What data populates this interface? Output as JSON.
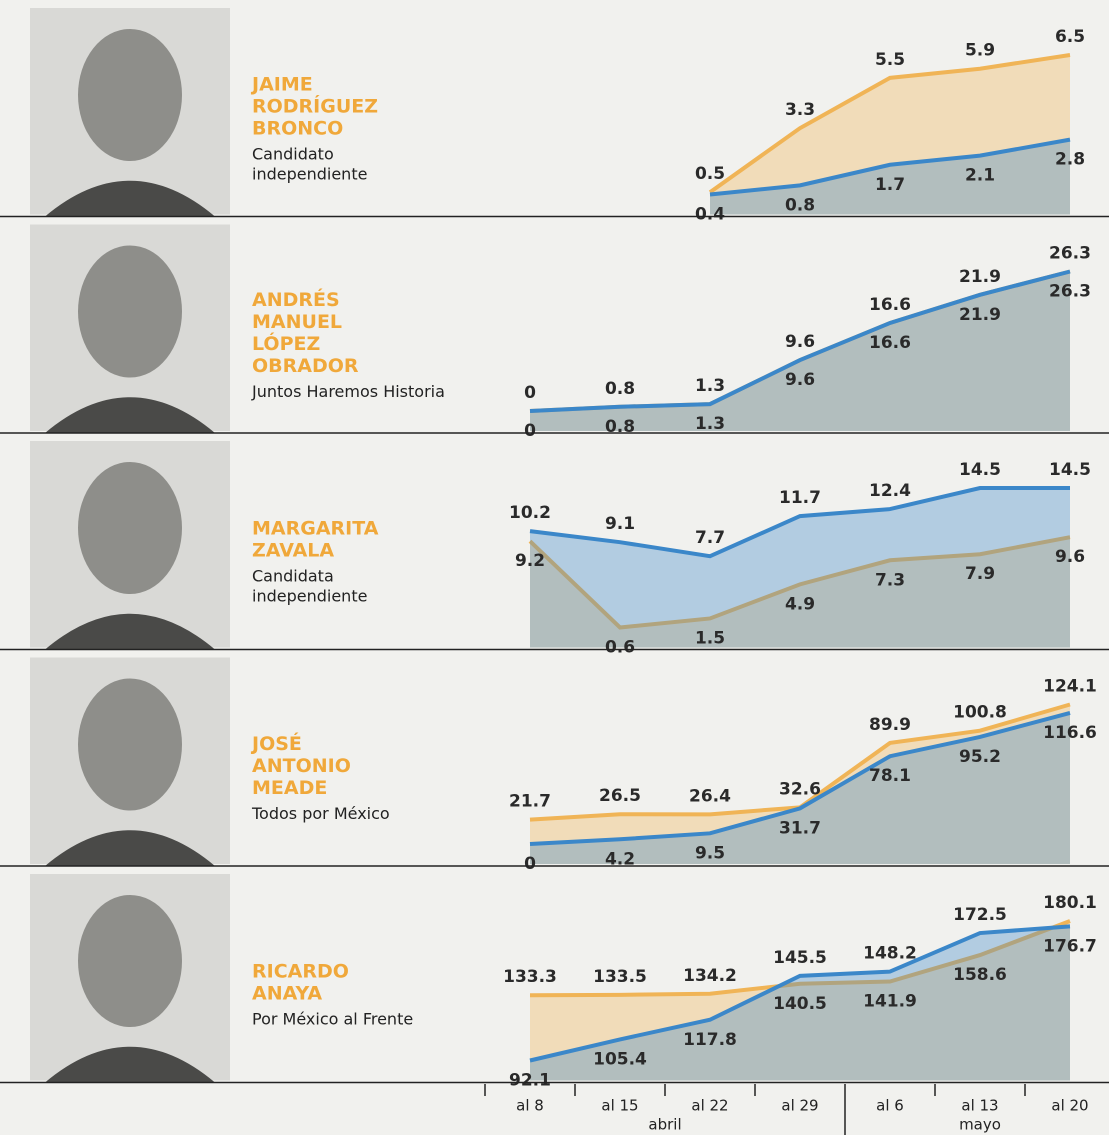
{
  "chart_data": {
    "type": "line",
    "groups": [
      {
        "label": "abril",
        "categories": [
          "al 8",
          "al 15",
          "al 22",
          "al 29"
        ]
      },
      {
        "label": "mayo",
        "categories": [
          "al 6",
          "al 13",
          "al 20"
        ]
      }
    ],
    "panels": [
      {
        "name_lines": [
          "JAIME",
          "RODRÍGUEZ",
          "BRONCO"
        ],
        "party_lines": [
          "Candidato",
          "independiente"
        ],
        "series": [
          {
            "color": "#f0b456",
            "values": [
              null,
              null,
              0.5,
              3.3,
              5.5,
              5.9,
              6.5
            ]
          },
          {
            "color": "#3b87c9",
            "values": [
              null,
              null,
              0.4,
              0.8,
              1.7,
              2.1,
              2.8
            ]
          }
        ]
      },
      {
        "name_lines": [
          "ANDRÉS",
          "MANUEL",
          "LÓPEZ",
          "OBRADOR"
        ],
        "party_lines": [
          "Juntos Haremos Historia"
        ],
        "series": [
          {
            "color": "#f0b456",
            "values": [
              0,
              0.8,
              1.3,
              9.6,
              16.6,
              21.9,
              26.3
            ]
          },
          {
            "color": "#3b87c9",
            "values": [
              0,
              0.8,
              1.3,
              9.6,
              16.6,
              21.9,
              26.3
            ]
          }
        ]
      },
      {
        "name_lines": [
          "MARGARITA",
          "ZAVALA"
        ],
        "party_lines": [
          "Candidata",
          "independiente"
        ],
        "series": [
          {
            "color": "#f0b456",
            "values": [
              9.2,
              0.6,
              1.5,
              4.9,
              7.3,
              7.9,
              9.6
            ]
          },
          {
            "color": "#3b87c9",
            "values": [
              10.2,
              9.1,
              7.7,
              11.7,
              12.4,
              14.5,
              14.5
            ]
          }
        ]
      },
      {
        "name_lines": [
          "JOSÉ",
          "ANTONIO",
          "MEADE"
        ],
        "party_lines": [
          "Todos por México"
        ],
        "series": [
          {
            "color": "#f0b456",
            "values": [
              21.7,
              26.5,
              26.4,
              32.6,
              89.9,
              100.8,
              124.1
            ]
          },
          {
            "color": "#3b87c9",
            "values": [
              0,
              4.2,
              9.5,
              31.7,
              78.1,
              95.2,
              116.6
            ]
          }
        ]
      },
      {
        "name_lines": [
          "RICARDO",
          "ANAYA"
        ],
        "party_lines": [
          "Por México al Frente"
        ],
        "series": [
          {
            "color": "#f0b456",
            "values": [
              133.3,
              133.5,
              134.2,
              140.5,
              141.9,
              158.6,
              180.1
            ]
          },
          {
            "color": "#3b87c9",
            "values": [
              92.1,
              105.4,
              117.8,
              145.5,
              148.2,
              172.5,
              176.7
            ]
          }
        ]
      }
    ]
  }
}
